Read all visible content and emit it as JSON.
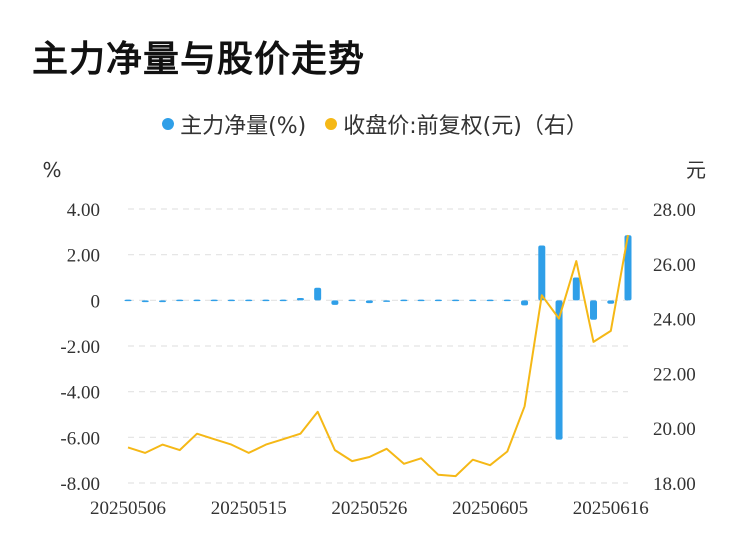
{
  "title": "主力净量与股价走势",
  "colors": {
    "bar": "#2f9fe8",
    "line": "#f5b816",
    "grid": "#e3e3e3"
  },
  "chart_data": {
    "type": "bar+line",
    "legend": [
      {
        "name": "主力净量(%)",
        "color": "#2f9fe8"
      },
      {
        "name": "收盘价:前复权(元)（右）",
        "color": "#f5b816"
      }
    ],
    "left_unit": "%",
    "right_unit": "元",
    "left_ticks": [
      "4.00",
      "2.00",
      "0",
      "-2.00",
      "-4.00",
      "-6.00",
      "-8.00"
    ],
    "right_ticks": [
      "28.00",
      "26.00",
      "24.00",
      "22.00",
      "20.00",
      "18.00"
    ],
    "ylim_left": [
      -8,
      4
    ],
    "ylim_right": [
      18,
      28
    ],
    "x_tick_labels": [
      "20250506",
      "20250515",
      "20250526",
      "20250605",
      "20250616"
    ],
    "x_tick_index": [
      0,
      7,
      14,
      21,
      28
    ],
    "series": [
      {
        "name": "主力净量(%)",
        "type": "bar",
        "values": [
          -0.05,
          -0.08,
          -0.08,
          -0.06,
          0,
          0.05,
          -0.03,
          -0.05,
          0,
          0,
          0.1,
          0.55,
          -0.2,
          -0.06,
          -0.12,
          -0.07,
          0.04,
          -0.04,
          -0.06,
          0,
          0.06,
          -0.03,
          -0.03,
          -0.22,
          2.4,
          -6.1,
          1.0,
          -0.85,
          -0.15,
          2.85
        ]
      },
      {
        "name": "收盘价:前复权(元)",
        "type": "line",
        "values": [
          19.3,
          19.1,
          19.4,
          19.2,
          19.8,
          19.6,
          19.4,
          19.1,
          19.4,
          19.6,
          19.8,
          20.6,
          19.2,
          18.8,
          18.95,
          19.25,
          18.7,
          18.9,
          18.3,
          18.25,
          18.85,
          18.65,
          19.15,
          20.8,
          24.85,
          24.0,
          26.1,
          23.15,
          23.55,
          27.05
        ]
      }
    ]
  }
}
